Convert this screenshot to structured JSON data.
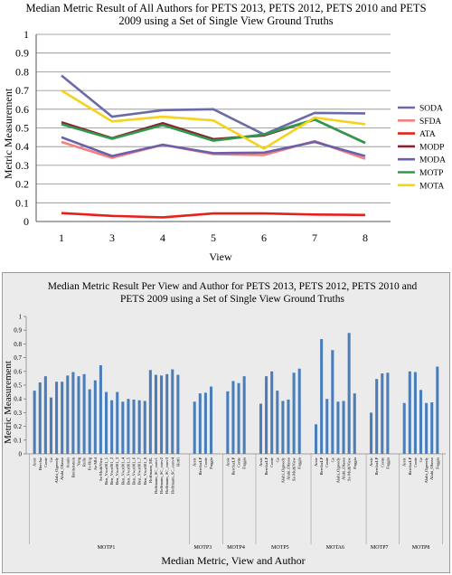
{
  "chart_data": [
    {
      "type": "line",
      "title": "Median Metric Result of All Authors for PETS 2013, PETS 2012, PETS 2010 and PETS 2009 using a Set of Single View Ground Truths",
      "title_lines": [
        "Median Metric Result of All Authors for PETS 2013, PETS 2012, PETS 2010 and PETS",
        "2009 using a Set of Single View Ground Truths"
      ],
      "xlabel": "View",
      "ylabel": "Metric Measurement",
      "x": [
        "1",
        "3",
        "4",
        "5",
        "6",
        "7",
        "8"
      ],
      "ylim": [
        0,
        1
      ],
      "yticks": [
        "0",
        "0.1",
        "0.2",
        "0.3",
        "0.4",
        "0.5",
        "0.6",
        "0.7",
        "0.8",
        "0.9",
        "1"
      ],
      "grid": true,
      "legend": "right",
      "series": [
        {
          "name": "SODA",
          "color": "#6b6aa8",
          "values": [
            0.78,
            0.56,
            0.595,
            0.6,
            0.465,
            0.58,
            0.578
          ]
        },
        {
          "name": "SFDA",
          "color": "#f28080",
          "values": [
            0.425,
            0.34,
            0.41,
            0.36,
            0.355,
            0.43,
            0.335
          ]
        },
        {
          "name": "ATA",
          "color": "#e8201c",
          "values": [
            0.045,
            0.03,
            0.022,
            0.043,
            0.043,
            0.037,
            0.035
          ]
        },
        {
          "name": "MODP",
          "color": "#8b2233",
          "values": [
            0.53,
            0.445,
            0.525,
            0.44,
            0.46,
            0.545,
            0.42
          ]
        },
        {
          "name": "MODA",
          "color": "#6a5fa8",
          "values": [
            0.45,
            0.35,
            0.41,
            0.365,
            0.368,
            0.425,
            0.35
          ]
        },
        {
          "name": "MOTP",
          "color": "#2f9a4a",
          "values": [
            0.52,
            0.442,
            0.515,
            0.432,
            0.465,
            0.545,
            0.42
          ]
        },
        {
          "name": "MOTA",
          "color": "#f5d21c",
          "values": [
            0.7,
            0.535,
            0.56,
            0.54,
            0.39,
            0.555,
            0.52
          ]
        }
      ]
    },
    {
      "type": "bar",
      "title": "Median Metric Result Per View and Author for PETS 2013, PETS 2012, PETS 2010 and PETS 2009 using a Set of Single View Ground Truths",
      "title_lines": [
        "Median Metric Result Per View and Author for  PETS 2013, PETS 2012, PETS 2010 and",
        "PETS 2009 using a Set of Single View Ground Truths"
      ],
      "xlabel": "Median Metric, View and Author",
      "ylabel": "Metric Measurement",
      "ylim": [
        0,
        1
      ],
      "yticks": [
        "0",
        "0.1",
        "0.2",
        "0.3",
        "0.4",
        "0.5",
        "0.6",
        "0.7",
        "0.8",
        "0.9",
        "1"
      ],
      "bar_color": "#4a7ebb",
      "groups": [
        {
          "label": "MOTP1",
          "authors": [
            "Arsic",
            "Berclaz",
            "Conte",
            "Ge",
            "Alahi_Ogreedy",
            "Alahi_Olasso",
            "Jeanis",
            "Breitenstein",
            "Yang",
            "Rolle",
            "Fe-Hog",
            "Sz-Mbl",
            "Sz-MultiView",
            "Ben_Vwx001_1",
            "Ben_Vwx001_2",
            "Ben_Vwx001_3",
            "Ben_Vwx001_4",
            "Ben_Vwx001_5",
            "Ben_Vwx001_6",
            "Ben_Vwx001_7",
            "Ben_Vwx001_8",
            "Hoffmann_ML",
            "Hoffmann_SC_conv1",
            "Hoffmann_SC_conv2",
            "Hoffmann_SC_conv3",
            "Hoffmann_SC_conv4",
            "Hoffi"
          ],
          "values": [
            0.46,
            0.52,
            0.565,
            0.41,
            0.525,
            0.525,
            0.57,
            0.595,
            0.565,
            0.58,
            0.47,
            0.535,
            0.645,
            0.45,
            0.39,
            0.45,
            0.38,
            0.4,
            0.395,
            0.39,
            0.385,
            0.61,
            0.575,
            0.57,
            0.58,
            0.615,
            0.575
          ]
        },
        {
          "label": "MOTP3",
          "authors": [
            "Arsic",
            "BerclazLP",
            "Conte",
            "Fuggia"
          ],
          "values": [
            0.38,
            0.44,
            0.445,
            0.49
          ]
        },
        {
          "label": "MOTP4",
          "authors": [
            "Arsic",
            "BerclazLP",
            "Conte",
            "Fuggia"
          ],
          "values": [
            0.455,
            0.53,
            0.515,
            0.565
          ]
        },
        {
          "label": "MOTP5",
          "authors": [
            "Arsic",
            "BerclazLP",
            "Conte",
            "Ge",
            "Alahi_Ogreedy",
            "Alahi_Olasso",
            "Sz-MultiView",
            "Fuggia"
          ],
          "values": [
            0.365,
            0.565,
            0.6,
            0.46,
            0.385,
            0.395,
            0.59,
            0.62
          ]
        },
        {
          "label": "MOTA6",
          "authors": [
            "Arsic",
            "BerclazLP",
            "Conte",
            "Ge",
            "Alahi_Ogreedy",
            "Alahi_Olasso",
            "Sz-MultiView",
            "Fuggia"
          ],
          "values": [
            0.215,
            0.835,
            0.4,
            0.755,
            0.38,
            0.385,
            0.88,
            0.44
          ]
        },
        {
          "label": "MOTP7",
          "authors": [
            "Arsic",
            "BerclazLP",
            "Conte",
            "Fuggia"
          ],
          "values": [
            0.3,
            0.545,
            0.585,
            0.59
          ]
        },
        {
          "label": "MOTP8",
          "authors": [
            "Arsic",
            "BerclazLP",
            "Conte",
            "Ge",
            "Alahi_Ogreedy",
            "Alahi_Olasso",
            "Fuggia"
          ],
          "values": [
            0.37,
            0.6,
            0.595,
            0.465,
            0.37,
            0.375,
            0.635
          ]
        }
      ]
    }
  ]
}
